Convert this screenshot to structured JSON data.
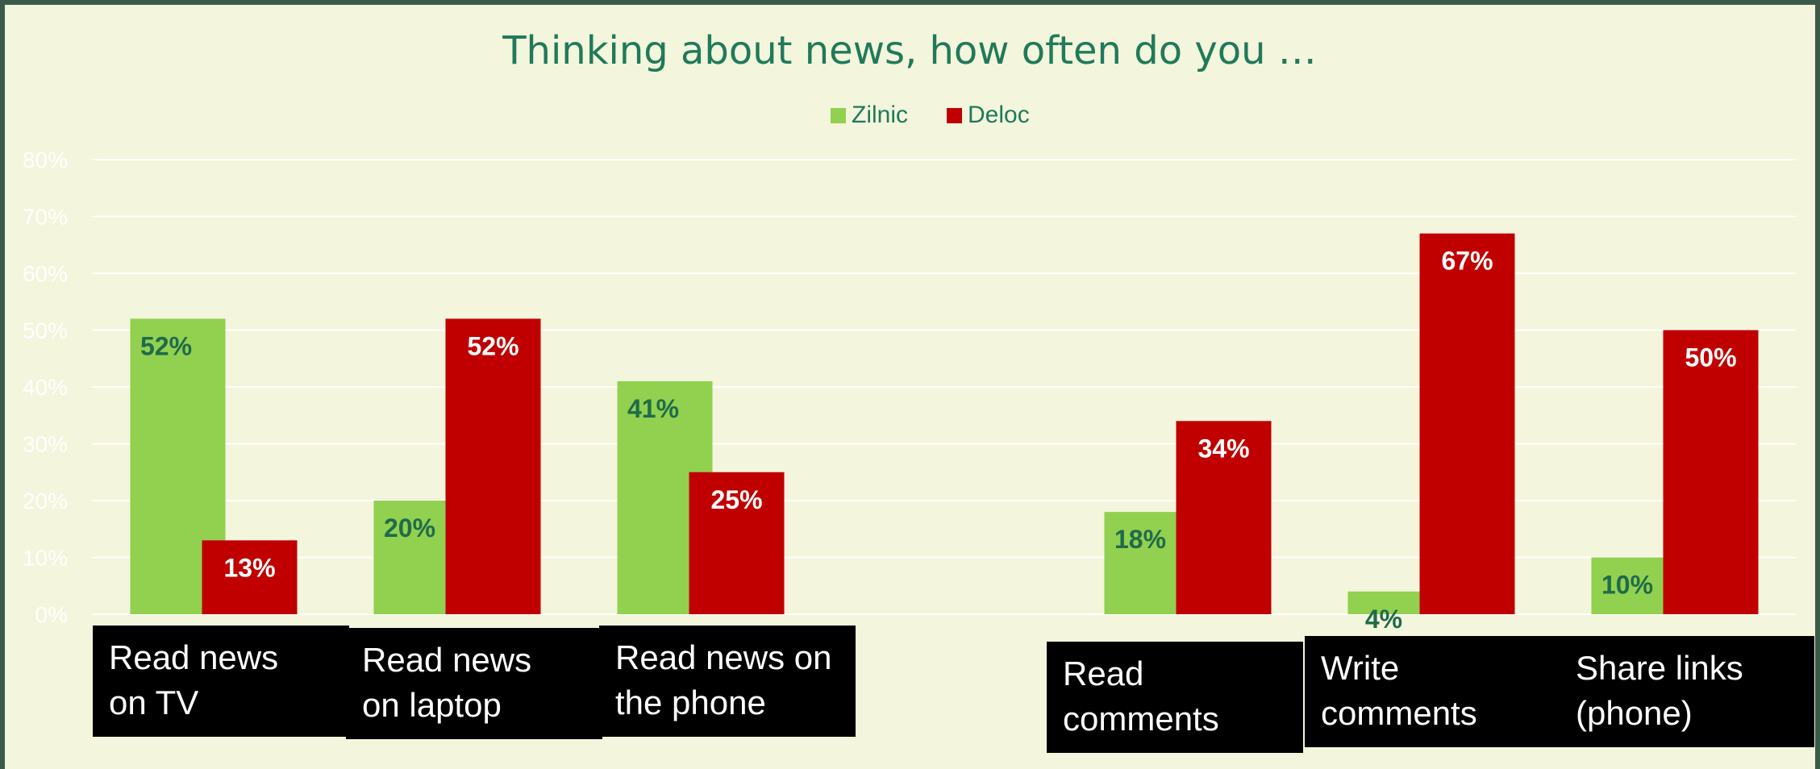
{
  "chart_data": {
    "type": "bar",
    "title": "Thinking about news, how often do you …",
    "categories": [
      "Read news\non TV",
      "Read news\non laptop",
      "Read news on\nthe phone",
      "",
      "Read\ncomments",
      "Write\ncomments",
      "Share links\n(phone)"
    ],
    "series": [
      {
        "name": "Zilnic",
        "color": "#92d050",
        "label_color": "#1f6b4a",
        "values": [
          52,
          20,
          41,
          null,
          18,
          4,
          10
        ],
        "labels": [
          "52%",
          "20%",
          "41%",
          "",
          "18%",
          "4%",
          "10%"
        ]
      },
      {
        "name": "Deloc",
        "color": "#c00000",
        "label_color": "#ffffff",
        "values": [
          13,
          52,
          25,
          null,
          34,
          67,
          50
        ],
        "labels": [
          "13%",
          "52%",
          "25%",
          "",
          "34%",
          "67%",
          "50%"
        ]
      }
    ],
    "ylim": [
      0,
      80
    ],
    "yticks": [
      "0%",
      "10%",
      "20%",
      "30%",
      "40%",
      "50%",
      "60%",
      "70%",
      "80%"
    ],
    "grid": true,
    "legend_position": "top",
    "colors": {
      "background": "#f3f5dc",
      "title": "#1f7a5a",
      "grid": "#ffffff",
      "tick": "#ffffff"
    }
  }
}
